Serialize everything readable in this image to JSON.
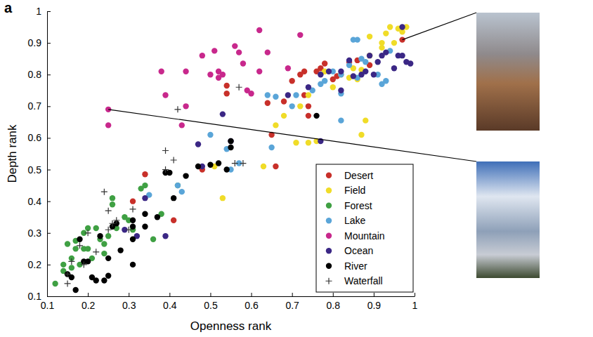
{
  "chart_data": {
    "type": "scatter",
    "panel_label": "a",
    "x_label": "Openness rank",
    "y_label": "Depth rank",
    "xlim": [
      0.1,
      1
    ],
    "ylim": [
      0.1,
      1
    ],
    "xticks": [
      0.1,
      0.2,
      0.3,
      0.4,
      0.5,
      0.6,
      0.7,
      0.8,
      0.9,
      1
    ],
    "yticks": [
      0.1,
      0.2,
      0.3,
      0.4,
      0.5,
      0.6,
      0.7,
      0.8,
      0.9,
      1
    ],
    "legend": "lower right",
    "series": [
      {
        "name": "Desert",
        "color": "#c8302a",
        "marker": "circle",
        "x": [
          0.31,
          0.34,
          0.41,
          0.48,
          0.54,
          0.54,
          0.64,
          0.65,
          0.66,
          0.68,
          0.7,
          0.72,
          0.73,
          0.73,
          0.74,
          0.74,
          0.76,
          0.77,
          0.78,
          0.8,
          0.81,
          0.84,
          0.86,
          0.89,
          0.97
        ],
        "values": [
          0.4,
          0.485,
          0.34,
          0.5,
          0.765,
          0.74,
          0.71,
          0.61,
          0.51,
          0.715,
          0.78,
          0.8,
          0.735,
          0.81,
          0.67,
          0.7,
          0.81,
          0.82,
          0.835,
          0.785,
          0.795,
          0.84,
          0.845,
          0.83,
          0.91
        ]
      },
      {
        "name": "Field",
        "color": "#f0dc28",
        "marker": "circle",
        "x": [
          0.51,
          0.53,
          0.63,
          0.66,
          0.68,
          0.71,
          0.72,
          0.74,
          0.74,
          0.76,
          0.78,
          0.8,
          0.82,
          0.84,
          0.85,
          0.87,
          0.87,
          0.88,
          0.89,
          0.89,
          0.92,
          0.92,
          0.93,
          0.94,
          0.95,
          0.96,
          0.97,
          0.98,
          0.86
        ],
        "values": [
          0.51,
          0.41,
          0.51,
          0.64,
          0.67,
          0.585,
          0.7,
          0.735,
          0.585,
          0.59,
          0.81,
          0.76,
          0.8,
          0.79,
          0.82,
          0.61,
          0.815,
          0.655,
          0.92,
          0.86,
          0.885,
          0.9,
          0.93,
          0.95,
          0.9,
          0.945,
          0.935,
          0.95,
          0.785
        ]
      },
      {
        "name": "Forest",
        "color": "#3fa043",
        "marker": "circle",
        "x": [
          0.12,
          0.14,
          0.14,
          0.15,
          0.16,
          0.17,
          0.17,
          0.18,
          0.19,
          0.19,
          0.2,
          0.21,
          0.22,
          0.23,
          0.24,
          0.24,
          0.25,
          0.26,
          0.26,
          0.27,
          0.29,
          0.3,
          0.31,
          0.33,
          0.34,
          0.36,
          0.38,
          0.42,
          0.16,
          0.2
        ],
        "values": [
          0.14,
          0.2,
          0.18,
          0.265,
          0.22,
          0.25,
          0.275,
          0.2,
          0.25,
          0.3,
          0.315,
          0.22,
          0.315,
          0.28,
          0.265,
          0.235,
          0.29,
          0.39,
          0.41,
          0.315,
          0.35,
          0.34,
          0.31,
          0.44,
          0.45,
          0.28,
          0.36,
          0.45,
          0.19,
          0.25
        ]
      },
      {
        "name": "Lake",
        "color": "#5aa5d8",
        "marker": "circle",
        "x": [
          0.35,
          0.42,
          0.43,
          0.5,
          0.54,
          0.57,
          0.55,
          0.65,
          0.66,
          0.7,
          0.71,
          0.77,
          0.78,
          0.8,
          0.82,
          0.82,
          0.82,
          0.84,
          0.85,
          0.86,
          0.86,
          0.87,
          0.88,
          0.91,
          0.92,
          0.93,
          0.94,
          0.64,
          0.75
        ],
        "values": [
          0.42,
          0.45,
          0.43,
          0.61,
          0.565,
          0.52,
          0.5,
          0.57,
          0.73,
          0.7,
          0.735,
          0.77,
          0.78,
          0.81,
          0.74,
          0.655,
          0.8,
          0.83,
          0.91,
          0.91,
          0.79,
          0.85,
          0.84,
          0.8,
          0.77,
          0.78,
          0.875,
          0.735,
          0.75
        ]
      },
      {
        "name": "Mountain",
        "color": "#c8288c",
        "marker": "circle",
        "x": [
          0.25,
          0.25,
          0.39,
          0.38,
          0.44,
          0.43,
          0.44,
          0.48,
          0.5,
          0.51,
          0.52,
          0.53,
          0.52,
          0.56,
          0.57,
          0.58,
          0.59,
          0.6,
          0.62,
          0.62,
          0.64,
          0.69,
          0.72
        ],
        "values": [
          0.69,
          0.64,
          0.735,
          0.81,
          0.81,
          0.64,
          0.7,
          0.86,
          0.8,
          0.875,
          0.81,
          0.8,
          0.79,
          0.89,
          0.87,
          0.835,
          0.75,
          0.74,
          0.81,
          0.94,
          0.87,
          0.82,
          0.925
        ]
      },
      {
        "name": "Ocean",
        "color": "#3b2785",
        "marker": "circle",
        "x": [
          0.29,
          0.32,
          0.34,
          0.39,
          0.47,
          0.48,
          0.53,
          0.55,
          0.69,
          0.74,
          0.77,
          0.77,
          0.79,
          0.82,
          0.82,
          0.84,
          0.85,
          0.87,
          0.88,
          0.89,
          0.9,
          0.91,
          0.92,
          0.93,
          0.95,
          0.96,
          0.97,
          0.97,
          0.99,
          0.98
        ],
        "values": [
          0.31,
          0.29,
          0.41,
          0.29,
          0.58,
          0.51,
          0.675,
          0.59,
          0.735,
          0.76,
          0.59,
          0.8,
          0.81,
          0.81,
          0.75,
          0.845,
          0.795,
          0.8,
          0.81,
          0.86,
          0.8,
          0.84,
          0.86,
          0.87,
          0.82,
          0.86,
          0.86,
          0.95,
          0.835,
          0.84
        ]
      },
      {
        "name": "River",
        "color": "#000000",
        "marker": "circle",
        "x": [
          0.15,
          0.16,
          0.17,
          0.18,
          0.19,
          0.2,
          0.21,
          0.22,
          0.23,
          0.24,
          0.25,
          0.25,
          0.26,
          0.27,
          0.28,
          0.31,
          0.31,
          0.31,
          0.31,
          0.34,
          0.34,
          0.37,
          0.39,
          0.4,
          0.41,
          0.44,
          0.47,
          0.5,
          0.52,
          0.54,
          0.55,
          0.55,
          0.76
        ],
        "values": [
          0.17,
          0.16,
          0.12,
          0.28,
          0.21,
          0.21,
          0.16,
          0.15,
          0.29,
          0.15,
          0.165,
          0.22,
          0.32,
          0.33,
          0.245,
          0.2,
          0.32,
          0.34,
          0.28,
          0.36,
          0.32,
          0.35,
          0.49,
          0.49,
          0.41,
          0.48,
          0.51,
          0.515,
          0.52,
          0.5,
          0.59,
          0.57,
          0.67
        ]
      },
      {
        "name": "Waterfall",
        "color": "#333333",
        "marker": "plus",
        "x": [
          0.15,
          0.15,
          0.16,
          0.18,
          0.19,
          0.2,
          0.22,
          0.24,
          0.25,
          0.25,
          0.26,
          0.27,
          0.3,
          0.31,
          0.39,
          0.39,
          0.41,
          0.42,
          0.57,
          0.58,
          0.56
        ],
        "values": [
          0.14,
          0.17,
          0.21,
          0.26,
          0.2,
          0.3,
          0.24,
          0.43,
          0.31,
          0.37,
          0.33,
          0.34,
          0.31,
          0.375,
          0.56,
          0.5,
          0.53,
          0.69,
          0.76,
          0.52,
          0.52
        ]
      }
    ]
  }
}
